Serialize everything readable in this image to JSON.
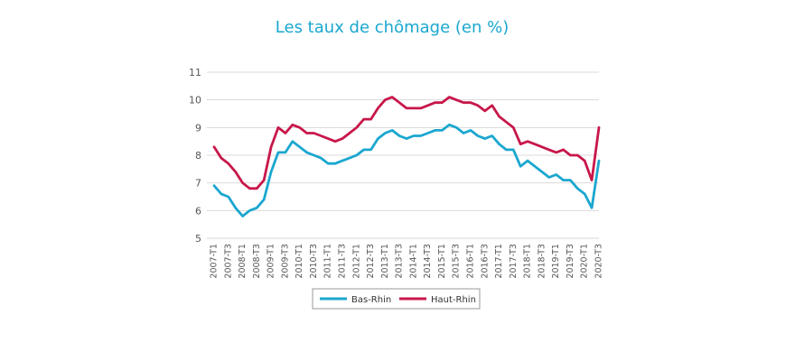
{
  "chart_data": {
    "type": "line",
    "title": "Les taux de chômage (en %)",
    "xlabel": "",
    "ylabel": "",
    "ylim": [
      5,
      11
    ],
    "yticks": [
      5,
      6,
      7,
      8,
      9,
      10,
      11
    ],
    "grid": true,
    "legend_position": "bottom",
    "x": [
      "2007-T1",
      "2007-T2",
      "2007-T3",
      "2007-T4",
      "2008-T1",
      "2008-T2",
      "2008-T3",
      "2008-T4",
      "2009-T1",
      "2009-T2",
      "2009-T3",
      "2009-T4",
      "2010-T1",
      "2010-T2",
      "2010-T3",
      "2010-T4",
      "2011-T1",
      "2011-T2",
      "2011-T3",
      "2011-T4",
      "2012-T1",
      "2012-T2",
      "2012-T3",
      "2012-T4",
      "2013-T1",
      "2013-T2",
      "2013-T3",
      "2013-T4",
      "2014-T1",
      "2014-T2",
      "2014-T3",
      "2014-T4",
      "2015-T1",
      "2015-T2",
      "2015-T3",
      "2015-T4",
      "2016-T1",
      "2016-T2",
      "2016-T3",
      "2016-T4",
      "2017-T1",
      "2017-T2",
      "2017-T3",
      "2017-T4",
      "2018-T1",
      "2018-T2",
      "2018-T3",
      "2018-T4",
      "2019-T1",
      "2019-T2",
      "2019-T3",
      "2019-T4",
      "2020-T1",
      "2020-T2",
      "2020-T3"
    ],
    "xtick_labels": [
      "2007-T1",
      "2007-T3",
      "2008-T1",
      "2008-T3",
      "2009-T1",
      "2009-T3",
      "2010-T1",
      "2010-T3",
      "2011-T1",
      "2011-T3",
      "2012-T1",
      "2012-T3",
      "2013-T1",
      "2013-T3",
      "2014-T1",
      "2014-T3",
      "2015-T1",
      "2015-T3",
      "2016-T1",
      "2016-T3",
      "2017-T1",
      "2017-T3",
      "2018-T1",
      "2018-T3",
      "2019-T1",
      "2019-T3",
      "2020-T1",
      "2020-T3"
    ],
    "series": [
      {
        "name": "Bas-Rhin",
        "color": "#1aa7cf",
        "values": [
          6.9,
          6.6,
          6.5,
          6.1,
          5.8,
          6.0,
          6.1,
          6.4,
          7.4,
          8.1,
          8.1,
          8.5,
          8.3,
          8.1,
          8.0,
          7.9,
          7.7,
          7.7,
          7.8,
          7.9,
          8.0,
          8.2,
          8.2,
          8.6,
          8.8,
          8.9,
          8.7,
          8.6,
          8.7,
          8.7,
          8.8,
          8.9,
          8.9,
          9.1,
          9.0,
          8.8,
          8.9,
          8.7,
          8.6,
          8.7,
          8.4,
          8.2,
          8.2,
          7.6,
          7.8,
          7.6,
          7.4,
          7.2,
          7.3,
          7.1,
          7.1,
          6.8,
          6.6,
          6.1,
          7.8
        ]
      },
      {
        "name": "Haut-Rhin",
        "color": "#c8174a",
        "values": [
          8.3,
          7.9,
          7.7,
          7.4,
          7.0,
          6.8,
          6.8,
          7.1,
          8.3,
          9.0,
          8.8,
          9.1,
          9.0,
          8.8,
          8.8,
          8.7,
          8.6,
          8.5,
          8.6,
          8.8,
          9.0,
          9.3,
          9.3,
          9.7,
          10.0,
          10.1,
          9.9,
          9.7,
          9.7,
          9.7,
          9.8,
          9.9,
          9.9,
          10.1,
          10.0,
          9.9,
          9.9,
          9.8,
          9.6,
          9.8,
          9.4,
          9.2,
          9.0,
          8.4,
          8.5,
          8.4,
          8.3,
          8.2,
          8.1,
          8.2,
          8.0,
          8.0,
          7.8,
          7.1,
          9.0
        ]
      }
    ]
  }
}
